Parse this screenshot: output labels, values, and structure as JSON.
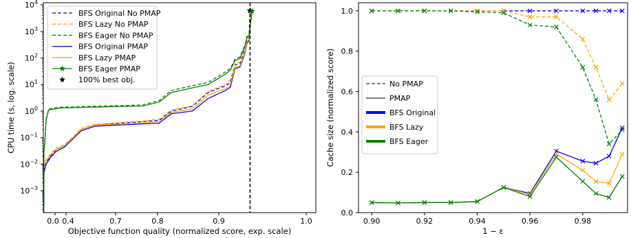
{
  "chart_data": [
    {
      "type": "line",
      "xlabel": "Objective function quality (normalized score, exp. scale)",
      "ylabel": "CPU time (s, log. scale)",
      "yscale": "log",
      "xscale": "exponential",
      "ylim": [
        0.00015,
        12000
      ],
      "xticks": [
        "0.0",
        "0.4",
        "0.7",
        "0.8",
        "0.9",
        "1.0"
      ],
      "yticks": [
        "10^-3",
        "10^-2",
        "10^-1",
        "10^0",
        "10^1",
        "10^2",
        "10^3",
        "10^4"
      ],
      "legend_position": "upper-left",
      "legend": [
        {
          "label": "BFS Original No PMAP",
          "color": "#0000ff",
          "style": "dashed",
          "marker": ""
        },
        {
          "label": "BFS Lazy No PMAP",
          "color": "#ffa500",
          "style": "dashed",
          "marker": ""
        },
        {
          "label": "BFS Eager No PMAP",
          "color": "#008000",
          "style": "dashed",
          "marker": ""
        },
        {
          "label": "BFS Original PMAP",
          "color": "#0000ff",
          "style": "solid",
          "marker": ""
        },
        {
          "label": "BFS Lazy PMAP",
          "color": "#ffa500",
          "style": "solid",
          "marker": "star"
        },
        {
          "label": "BFS Eager PMAP",
          "color": "#008000",
          "style": "solid",
          "marker": "star"
        },
        {
          "label": "100% best obj.",
          "color": "#000000",
          "style": "none",
          "marker": "star"
        }
      ],
      "series": [
        {
          "name": "BFS Original No PMAP",
          "color": "#0000ff",
          "style": "dashed",
          "points": [
            [
              0.02,
              0.0005
            ],
            [
              0.03,
              0.0006
            ],
            [
              0.035,
              0.005
            ],
            [
              0.05,
              0.006
            ],
            [
              0.1,
              0.007
            ],
            [
              0.2,
              0.012
            ],
            [
              0.35,
              0.02
            ],
            [
              0.45,
              0.035
            ],
            [
              0.55,
              0.05
            ],
            [
              0.62,
              0.11
            ],
            [
              0.66,
              0.2
            ],
            [
              0.72,
              0.3
            ],
            [
              0.8,
              0.35
            ],
            [
              0.85,
              0.4
            ],
            [
              0.88,
              0.45
            ],
            [
              0.9,
              1.0
            ],
            [
              0.93,
              1.5
            ],
            [
              0.95,
              5
            ],
            [
              0.97,
              9
            ],
            [
              0.975,
              12
            ],
            [
              0.98,
              55
            ],
            [
              0.985,
              60
            ],
            [
              0.988,
              120
            ],
            [
              0.99,
              200
            ],
            [
              0.992,
              500
            ],
            [
              0.994,
              600
            ],
            [
              0.995,
              6000
            ]
          ]
        },
        {
          "name": "BFS Lazy No PMAP",
          "color": "#ffa500",
          "style": "dashed",
          "points": [
            [
              0.02,
              0.0012
            ],
            [
              0.03,
              0.0015
            ],
            [
              0.035,
              0.008
            ],
            [
              0.05,
              0.009
            ],
            [
              0.1,
              0.01
            ],
            [
              0.2,
              0.015
            ],
            [
              0.35,
              0.025
            ],
            [
              0.45,
              0.04
            ],
            [
              0.55,
              0.055
            ],
            [
              0.62,
              0.12
            ],
            [
              0.66,
              0.22
            ],
            [
              0.72,
              0.32
            ],
            [
              0.8,
              0.37
            ],
            [
              0.85,
              0.42
            ],
            [
              0.88,
              0.5
            ],
            [
              0.9,
              1.1
            ],
            [
              0.93,
              1.6
            ],
            [
              0.95,
              5.5
            ],
            [
              0.97,
              10
            ],
            [
              0.975,
              15
            ],
            [
              0.98,
              60
            ],
            [
              0.985,
              70
            ],
            [
              0.988,
              150
            ],
            [
              0.99,
              250
            ],
            [
              0.992,
              550
            ],
            [
              0.994,
              700
            ],
            [
              0.996,
              6000
            ]
          ]
        },
        {
          "name": "BFS Eager No PMAP",
          "color": "#008000",
          "style": "dashed",
          "points": [
            [
              0.02,
              0.00015
            ],
            [
              0.025,
              0.002
            ],
            [
              0.03,
              0.035
            ],
            [
              0.05,
              0.04
            ],
            [
              0.1,
              0.05
            ],
            [
              0.2,
              0.5
            ],
            [
              0.3,
              1.2
            ],
            [
              0.5,
              1.4
            ],
            [
              0.7,
              1.5
            ],
            [
              0.8,
              1.6
            ],
            [
              0.85,
              1.7
            ],
            [
              0.88,
              2.5
            ],
            [
              0.9,
              6
            ],
            [
              0.93,
              9
            ],
            [
              0.95,
              12
            ],
            [
              0.97,
              30
            ],
            [
              0.975,
              40
            ],
            [
              0.98,
              90
            ],
            [
              0.985,
              110
            ],
            [
              0.988,
              200
            ],
            [
              0.99,
              300
            ],
            [
              0.992,
              650
            ],
            [
              0.994,
              800
            ],
            [
              0.997,
              6000
            ]
          ]
        },
        {
          "name": "BFS Original PMAP",
          "color": "#0000ff",
          "style": "solid",
          "points": [
            [
              0.02,
              0.0003
            ],
            [
              0.03,
              0.0004
            ],
            [
              0.035,
              0.004
            ],
            [
              0.05,
              0.005
            ],
            [
              0.1,
              0.006
            ],
            [
              0.2,
              0.01
            ],
            [
              0.35,
              0.018
            ],
            [
              0.45,
              0.03
            ],
            [
              0.55,
              0.045
            ],
            [
              0.62,
              0.1
            ],
            [
              0.66,
              0.18
            ],
            [
              0.72,
              0.27
            ],
            [
              0.8,
              0.3
            ],
            [
              0.85,
              0.33
            ],
            [
              0.88,
              0.35
            ],
            [
              0.9,
              0.8
            ],
            [
              0.93,
              1.0
            ],
            [
              0.95,
              3
            ],
            [
              0.97,
              6
            ],
            [
              0.975,
              8
            ],
            [
              0.98,
              40
            ],
            [
              0.985,
              45
            ],
            [
              0.988,
              90
            ],
            [
              0.99,
              150
            ],
            [
              0.992,
              350
            ],
            [
              0.994,
              450
            ],
            [
              0.996,
              5000
            ]
          ]
        },
        {
          "name": "BFS Lazy PMAP",
          "color": "#ffa500",
          "style": "solid",
          "points": [
            [
              0.02,
              0.0009
            ],
            [
              0.03,
              0.001
            ],
            [
              0.035,
              0.007
            ],
            [
              0.05,
              0.008
            ],
            [
              0.1,
              0.009
            ],
            [
              0.2,
              0.013
            ],
            [
              0.35,
              0.022
            ],
            [
              0.45,
              0.036
            ],
            [
              0.55,
              0.05
            ],
            [
              0.62,
              0.11
            ],
            [
              0.66,
              0.2
            ],
            [
              0.72,
              0.3
            ],
            [
              0.8,
              0.32
            ],
            [
              0.85,
              0.36
            ],
            [
              0.88,
              0.4
            ],
            [
              0.9,
              0.9
            ],
            [
              0.93,
              1.2
            ],
            [
              0.95,
              4
            ],
            [
              0.97,
              7
            ],
            [
              0.975,
              10
            ],
            [
              0.98,
              45
            ],
            [
              0.985,
              50
            ],
            [
              0.988,
              100
            ],
            [
              0.99,
              170
            ],
            [
              0.992,
              400
            ],
            [
              0.994,
              500
            ],
            [
              0.996,
              5500
            ]
          ]
        },
        {
          "name": "BFS Eager PMAP",
          "color": "#008000",
          "style": "solid",
          "points": [
            [
              0.02,
              0.00015
            ],
            [
              0.025,
              0.002
            ],
            [
              0.03,
              0.03
            ],
            [
              0.05,
              0.035
            ],
            [
              0.1,
              0.045
            ],
            [
              0.2,
              0.45
            ],
            [
              0.3,
              1.1
            ],
            [
              0.5,
              1.3
            ],
            [
              0.7,
              1.4
            ],
            [
              0.8,
              1.5
            ],
            [
              0.85,
              1.55
            ],
            [
              0.88,
              2.2
            ],
            [
              0.9,
              5
            ],
            [
              0.93,
              7.5
            ],
            [
              0.95,
              10
            ],
            [
              0.97,
              25
            ],
            [
              0.975,
              35
            ],
            [
              0.98,
              80
            ],
            [
              0.985,
              95
            ],
            [
              0.988,
              180
            ],
            [
              0.99,
              270
            ],
            [
              0.992,
              600
            ],
            [
              0.994,
              700
            ],
            [
              0.997,
              5800
            ]
          ]
        }
      ],
      "best_obj_line": {
        "x": 0.995,
        "label": "100% best obj."
      }
    },
    {
      "type": "line",
      "xlabel": "1 − ε",
      "ylabel": "Cache size (normalized score)",
      "xlim": [
        0.895,
        0.997
      ],
      "ylim": [
        0.0,
        1.04
      ],
      "xticks": [
        "0.90",
        "0.92",
        "0.94",
        "0.96",
        "0.98"
      ],
      "yticks": [
        "0.0",
        "0.2",
        "0.4",
        "0.6",
        "0.8",
        "1.0"
      ],
      "legend_position": "center-left",
      "legend": [
        {
          "label": "No PMAP",
          "color": "#000000",
          "style": "dashed",
          "width": 1
        },
        {
          "label": "PMAP",
          "color": "#000000",
          "style": "solid",
          "width": 1
        },
        {
          "label": "BFS Original",
          "color": "#0000ff",
          "style": "solid",
          "width": 4
        },
        {
          "label": "BFS Lazy",
          "color": "#ffa500",
          "style": "solid",
          "width": 4
        },
        {
          "label": "BFS Eager",
          "color": "#008000",
          "style": "solid",
          "width": 4
        }
      ],
      "x": [
        0.9,
        0.91,
        0.92,
        0.93,
        0.94,
        0.95,
        0.96,
        0.97,
        0.98,
        0.985,
        0.99,
        0.995
      ],
      "series": [
        {
          "name": "BFS Original",
          "color": "#0000ff",
          "style": "dashed",
          "values": [
            1.0,
            1.0,
            1.0,
            1.0,
            1.0,
            1.0,
            1.0,
            1.0,
            1.0,
            1.0,
            1.0,
            1.0
          ]
        },
        {
          "name": "BFS Lazy",
          "color": "#ffa500",
          "style": "dashed",
          "values": [
            1.0,
            1.0,
            1.0,
            1.0,
            1.0,
            1.0,
            0.97,
            0.97,
            0.86,
            0.72,
            0.56,
            0.64
          ]
        },
        {
          "name": "BFS Eager",
          "color": "#008000",
          "style": "dashed",
          "values": [
            1.0,
            1.0,
            1.0,
            1.0,
            0.995,
            0.99,
            0.93,
            0.92,
            0.72,
            0.56,
            0.34,
            0.41
          ]
        },
        {
          "name": "BFS Original",
          "color": "#0000ff",
          "style": "solid",
          "values": [
            0.05,
            0.048,
            0.05,
            0.05,
            0.055,
            0.125,
            0.095,
            0.305,
            0.255,
            0.245,
            0.28,
            0.42
          ]
        },
        {
          "name": "BFS Lazy",
          "color": "#ffa500",
          "style": "solid",
          "values": [
            0.05,
            0.048,
            0.05,
            0.05,
            0.055,
            0.125,
            0.09,
            0.29,
            0.21,
            0.155,
            0.145,
            0.29
          ]
        },
        {
          "name": "BFS Eager",
          "color": "#008000",
          "style": "solid",
          "values": [
            0.05,
            0.048,
            0.05,
            0.05,
            0.055,
            0.125,
            0.08,
            0.275,
            0.155,
            0.095,
            0.075,
            0.18
          ]
        }
      ]
    }
  ]
}
